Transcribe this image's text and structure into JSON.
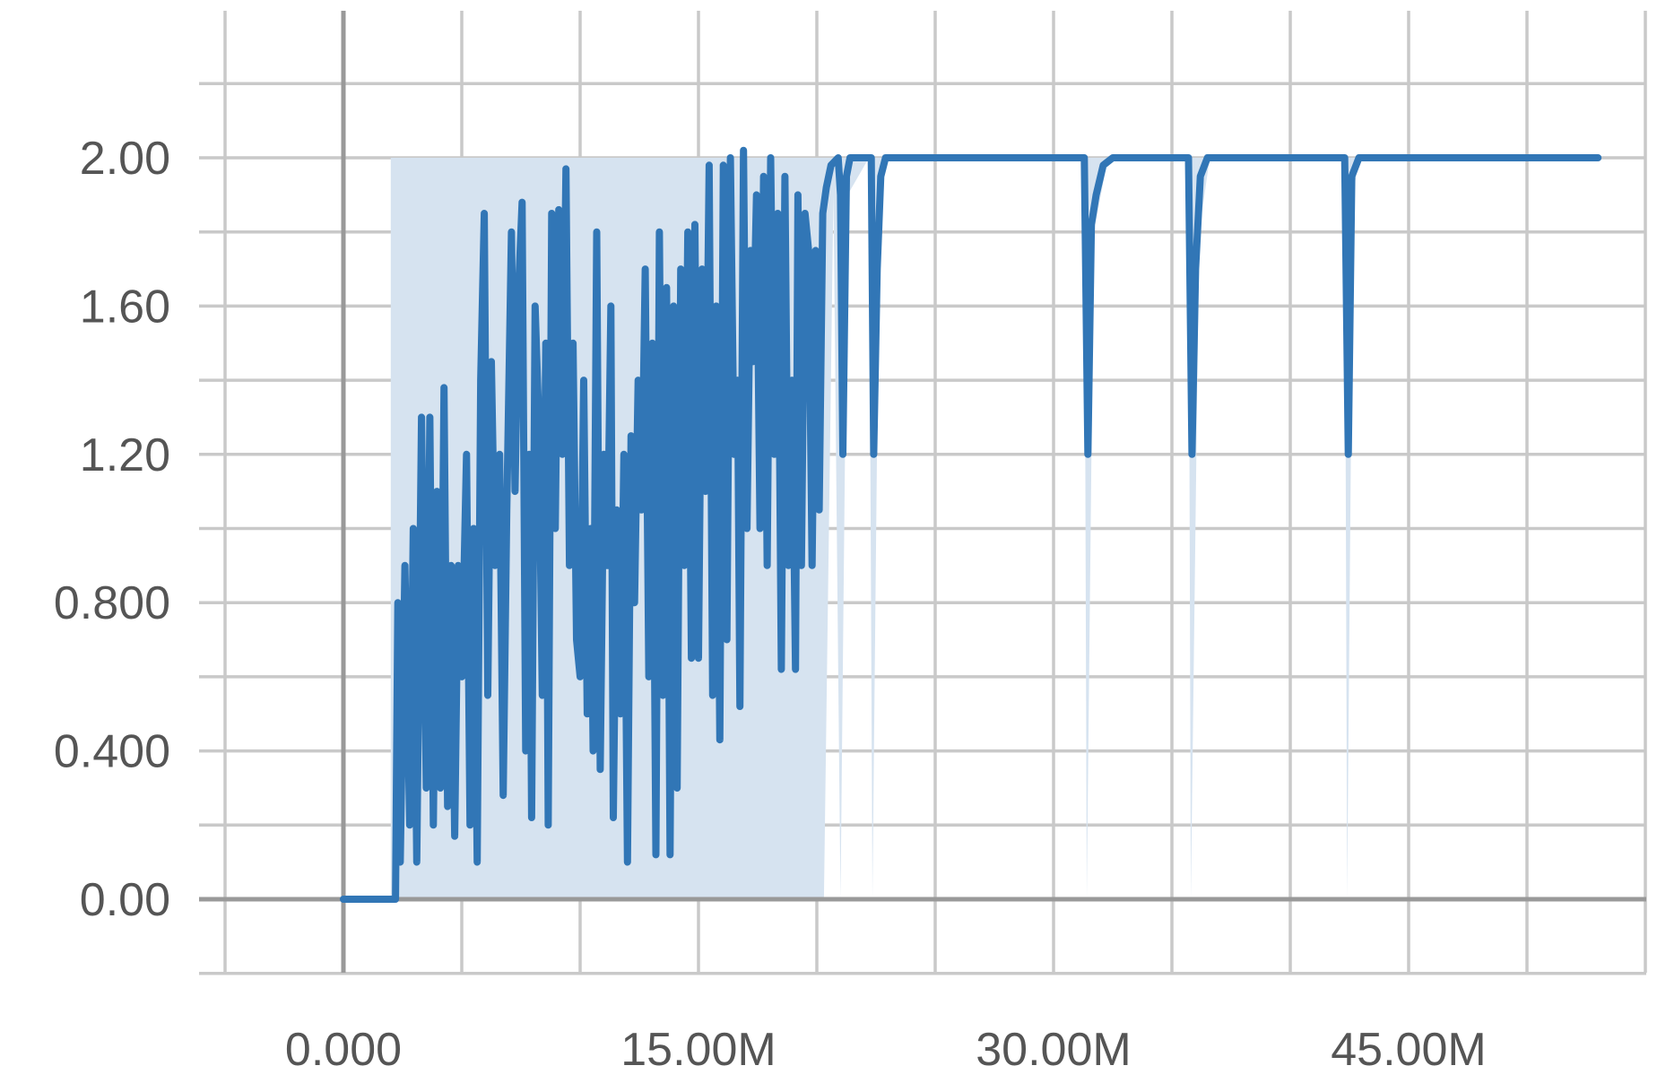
{
  "chart_data": {
    "type": "line",
    "title": "",
    "xlabel": "",
    "ylabel": "",
    "x_ticks": [
      "0.000",
      "15.00M",
      "30.00M",
      "45.00M"
    ],
    "x_tick_values": [
      0,
      15000000,
      30000000,
      45000000
    ],
    "y_ticks": [
      "0.00",
      "0.400",
      "0.800",
      "1.20",
      "1.60",
      "2.00"
    ],
    "y_tick_values": [
      0,
      0.4,
      0.8,
      1.2,
      1.6,
      2.0
    ],
    "xlim": [
      -5000000,
      55000000
    ],
    "ylim": [
      -0.2,
      2.4
    ],
    "grid": true,
    "legend": "none",
    "colors": {
      "line": "#3176b6",
      "band": "#d6e3f0",
      "grid": "#c9c9c9",
      "zero_axis": "#999999",
      "text": "#555555"
    },
    "series": [
      {
        "points": [
          [
            0,
            0
          ],
          [
            2200000,
            0
          ],
          [
            2300000,
            0.8
          ],
          [
            2400000,
            0.1
          ],
          [
            2600000,
            0.9
          ],
          [
            2800000,
            0.2
          ],
          [
            2950000,
            1.0
          ],
          [
            3100000,
            0.1
          ],
          [
            3300000,
            1.3
          ],
          [
            3500000,
            0.3
          ],
          [
            3650000,
            1.3
          ],
          [
            3800000,
            0.2
          ],
          [
            3950000,
            1.1
          ],
          [
            4100000,
            0.3
          ],
          [
            4250000,
            1.38
          ],
          [
            4400000,
            0.25
          ],
          [
            4550000,
            0.9
          ],
          [
            4700000,
            0.17
          ],
          [
            4850000,
            0.9
          ],
          [
            5000000,
            0.6
          ],
          [
            5200000,
            1.2
          ],
          [
            5350000,
            0.2
          ],
          [
            5500000,
            1.0
          ],
          [
            5650000,
            0.1
          ],
          [
            5800000,
            1.4
          ],
          [
            5950000,
            1.85
          ],
          [
            6100000,
            0.55
          ],
          [
            6250000,
            1.45
          ],
          [
            6400000,
            0.9
          ],
          [
            6600000,
            1.2
          ],
          [
            6750000,
            0.28
          ],
          [
            6900000,
            1.05
          ],
          [
            7100000,
            1.8
          ],
          [
            7250000,
            1.1
          ],
          [
            7400000,
            1.65
          ],
          [
            7550000,
            1.88
          ],
          [
            7700000,
            0.4
          ],
          [
            7850000,
            1.2
          ],
          [
            7950000,
            0.22
          ],
          [
            8100000,
            1.6
          ],
          [
            8250000,
            1.3
          ],
          [
            8400000,
            0.55
          ],
          [
            8550000,
            1.5
          ],
          [
            8650000,
            0.2
          ],
          [
            8800000,
            1.85
          ],
          [
            8950000,
            1.0
          ],
          [
            9100000,
            1.86
          ],
          [
            9250000,
            1.2
          ],
          [
            9400000,
            1.97
          ],
          [
            9550000,
            0.9
          ],
          [
            9700000,
            1.5
          ],
          [
            9850000,
            0.7
          ],
          [
            10000000,
            0.6
          ],
          [
            10150000,
            1.4
          ],
          [
            10300000,
            0.5
          ],
          [
            10450000,
            1.0
          ],
          [
            10550000,
            0.4
          ],
          [
            10700000,
            1.8
          ],
          [
            10850000,
            0.35
          ],
          [
            11000000,
            1.2
          ],
          [
            11150000,
            0.9
          ],
          [
            11300000,
            1.6
          ],
          [
            11400000,
            0.22
          ],
          [
            11550000,
            1.05
          ],
          [
            11700000,
            0.5
          ],
          [
            11850000,
            1.2
          ],
          [
            12000000,
            0.1
          ],
          [
            12150000,
            1.25
          ],
          [
            12300000,
            0.8
          ],
          [
            12450000,
            1.4
          ],
          [
            12600000,
            1.05
          ],
          [
            12750000,
            1.7
          ],
          [
            12900000,
            0.6
          ],
          [
            13050000,
            1.5
          ],
          [
            13200000,
            0.12
          ],
          [
            13350000,
            1.8
          ],
          [
            13500000,
            0.55
          ],
          [
            13650000,
            1.65
          ],
          [
            13800000,
            0.12
          ],
          [
            13950000,
            1.6
          ],
          [
            14100000,
            0.3
          ],
          [
            14250000,
            1.7
          ],
          [
            14400000,
            0.9
          ],
          [
            14550000,
            1.8
          ],
          [
            14700000,
            0.65
          ],
          [
            14850000,
            1.82
          ],
          [
            15000000,
            0.65
          ],
          [
            15150000,
            1.7
          ],
          [
            15300000,
            1.1
          ],
          [
            15450000,
            1.98
          ],
          [
            15600000,
            0.55
          ],
          [
            15750000,
            1.6
          ],
          [
            15900000,
            0.43
          ],
          [
            16050000,
            1.98
          ],
          [
            16200000,
            0.7
          ],
          [
            16350000,
            2.0
          ],
          [
            16500000,
            1.2
          ],
          [
            16650000,
            1.4
          ],
          [
            16750000,
            0.52
          ],
          [
            16900000,
            2.02
          ],
          [
            17050000,
            1.0
          ],
          [
            17200000,
            1.75
          ],
          [
            17300000,
            1.45
          ],
          [
            17450000,
            1.9
          ],
          [
            17600000,
            1.0
          ],
          [
            17750000,
            1.95
          ],
          [
            17900000,
            0.9
          ],
          [
            18050000,
            2.0
          ],
          [
            18200000,
            1.2
          ],
          [
            18350000,
            1.85
          ],
          [
            18500000,
            0.62
          ],
          [
            18650000,
            1.95
          ],
          [
            18800000,
            0.9
          ],
          [
            18950000,
            1.4
          ],
          [
            19100000,
            0.62
          ],
          [
            19200000,
            1.9
          ],
          [
            19350000,
            0.9
          ],
          [
            19500000,
            1.85
          ],
          [
            19650000,
            1.75
          ],
          [
            19800000,
            0.9
          ],
          [
            19950000,
            1.75
          ],
          [
            20100000,
            1.05
          ],
          [
            20250000,
            1.85
          ],
          [
            20400000,
            1.92
          ],
          [
            20600000,
            1.98
          ],
          [
            20900000,
            2.0
          ],
          [
            21000000,
            1.9
          ],
          [
            21100000,
            1.2
          ],
          [
            21250000,
            1.95
          ],
          [
            21400000,
            2.0
          ],
          [
            22300000,
            2.0
          ],
          [
            22400000,
            1.2
          ],
          [
            22550000,
            1.7
          ],
          [
            22700000,
            1.95
          ],
          [
            22900000,
            2.0
          ],
          [
            31300000,
            2.0
          ],
          [
            31450000,
            1.2
          ],
          [
            31600000,
            1.82
          ],
          [
            31800000,
            1.9
          ],
          [
            32100000,
            1.98
          ],
          [
            32500000,
            2.0
          ],
          [
            35700000,
            2.0
          ],
          [
            35850000,
            1.2
          ],
          [
            36000000,
            1.7
          ],
          [
            36200000,
            1.95
          ],
          [
            36500000,
            2.0
          ],
          [
            42300000,
            2.0
          ],
          [
            42450000,
            1.2
          ],
          [
            42600000,
            1.95
          ],
          [
            42900000,
            2.0
          ],
          [
            53000000,
            2.0
          ]
        ],
        "band": [
          [
            2000000,
            0,
            2.0
          ],
          [
            19200000,
            0,
            2.0
          ],
          [
            20300000,
            0,
            2.0
          ],
          [
            20700000,
            1.9,
            2.0
          ],
          [
            21000000,
            0,
            2.0
          ],
          [
            21300000,
            1.9,
            2.0
          ],
          [
            22200000,
            2.0,
            2.0
          ],
          [
            22350000,
            0,
            2.0
          ],
          [
            22650000,
            1.9,
            2.0
          ],
          [
            22900000,
            2.0,
            2.0
          ],
          [
            31300000,
            2.0,
            2.0
          ],
          [
            31400000,
            0,
            2.0
          ],
          [
            31700000,
            1.8,
            2.0
          ],
          [
            32300000,
            2.0,
            2.0
          ],
          [
            35700000,
            2.0,
            2.0
          ],
          [
            35800000,
            0,
            2.0
          ],
          [
            36150000,
            1.8,
            2.0
          ],
          [
            36600000,
            2.0,
            2.0
          ],
          [
            42300000,
            2.0,
            2.0
          ],
          [
            42400000,
            0,
            2.0
          ],
          [
            42650000,
            1.9,
            2.0
          ],
          [
            42900000,
            2.0,
            2.0
          ]
        ]
      }
    ]
  }
}
